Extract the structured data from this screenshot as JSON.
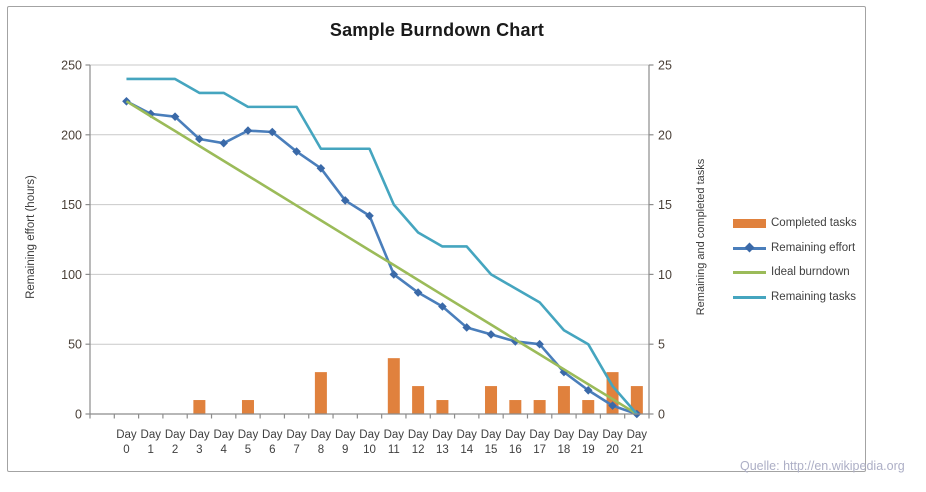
{
  "chart_data": {
    "type": "combo",
    "title": "Sample Burndown Chart",
    "category_prefix": "Day",
    "categories": [
      "0",
      "1",
      "2",
      "3",
      "4",
      "5",
      "6",
      "7",
      "8",
      "9",
      "10",
      "11",
      "12",
      "13",
      "14",
      "15",
      "16",
      "17",
      "18",
      "19",
      "20",
      "21"
    ],
    "left_axis": {
      "label": "Remaining effort (hours)",
      "min": 0,
      "max": 250,
      "step": 50,
      "ticks": [
        0,
        50,
        100,
        150,
        200,
        250
      ]
    },
    "right_axis": {
      "label": "Remaining and  completed tasks",
      "min": 0,
      "max": 25,
      "step": 5,
      "ticks": [
        0,
        5,
        10,
        15,
        20,
        25
      ]
    },
    "grid": true,
    "legend_position": "right",
    "series": [
      {
        "name": "Completed tasks",
        "type": "bar",
        "axis": "right",
        "color": "#E0813D",
        "values": [
          0,
          0,
          0,
          1,
          0,
          1,
          0,
          0,
          3,
          0,
          0,
          4,
          2,
          1,
          0,
          2,
          1,
          1,
          2,
          1,
          3,
          2
        ]
      },
      {
        "name": "Remaining effort",
        "type": "line",
        "marker": "diamond",
        "axis": "left",
        "color": "#4A7EBB",
        "marker_color": "#3A69A8",
        "values": [
          224,
          215,
          213,
          197,
          194,
          203,
          202,
          188,
          176,
          153,
          142,
          100,
          87,
          77,
          62,
          57,
          52,
          50,
          30,
          17,
          6,
          0
        ]
      },
      {
        "name": "Ideal burndown",
        "type": "line",
        "axis": "left",
        "color": "#9BBB59",
        "values": [
          224,
          213.3,
          202.7,
          192,
          181.3,
          170.7,
          160,
          149.3,
          138.7,
          128,
          117.3,
          106.7,
          96,
          85.3,
          74.7,
          64,
          53.3,
          42.7,
          32,
          21.3,
          10.7,
          0
        ]
      },
      {
        "name": "Remaining tasks",
        "type": "line",
        "axis": "right",
        "color": "#45A5BF",
        "values": [
          24,
          24,
          24,
          23,
          23,
          22,
          22,
          22,
          19,
          19,
          19,
          15,
          13,
          12,
          12,
          10,
          9,
          8,
          6,
          5,
          2,
          0
        ]
      }
    ]
  },
  "footer": {
    "source": "Quelle: http://en.wikipedia.org"
  },
  "style": {
    "gridline_color": "#C9C9C9",
    "axis_line_color": "#8C8C8C",
    "tick_label_color": "#4A4038",
    "x_label_color": "#3f3f3f"
  }
}
